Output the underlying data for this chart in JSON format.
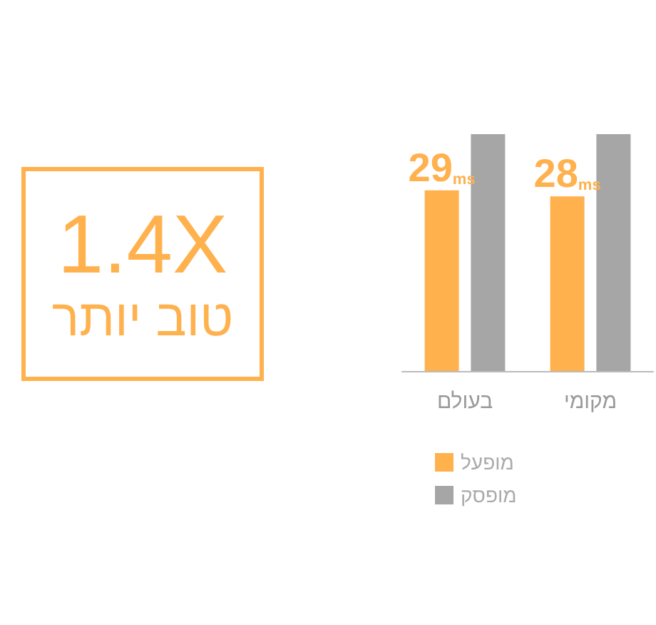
{
  "chart_data": {
    "type": "bar",
    "categories": [
      "בעולם",
      "מקומי"
    ],
    "series": [
      {
        "name": "מופעל",
        "color": "#ffb14e",
        "values": [
          29,
          28
        ],
        "value_labels": [
          "29ms",
          "28ms"
        ]
      },
      {
        "name": "מופסק",
        "color": "#a6a6a6",
        "values": [
          38,
          38
        ]
      }
    ],
    "annotations": [
      "1.4X",
      "טוב יותר"
    ],
    "legend": "bottom"
  }
}
